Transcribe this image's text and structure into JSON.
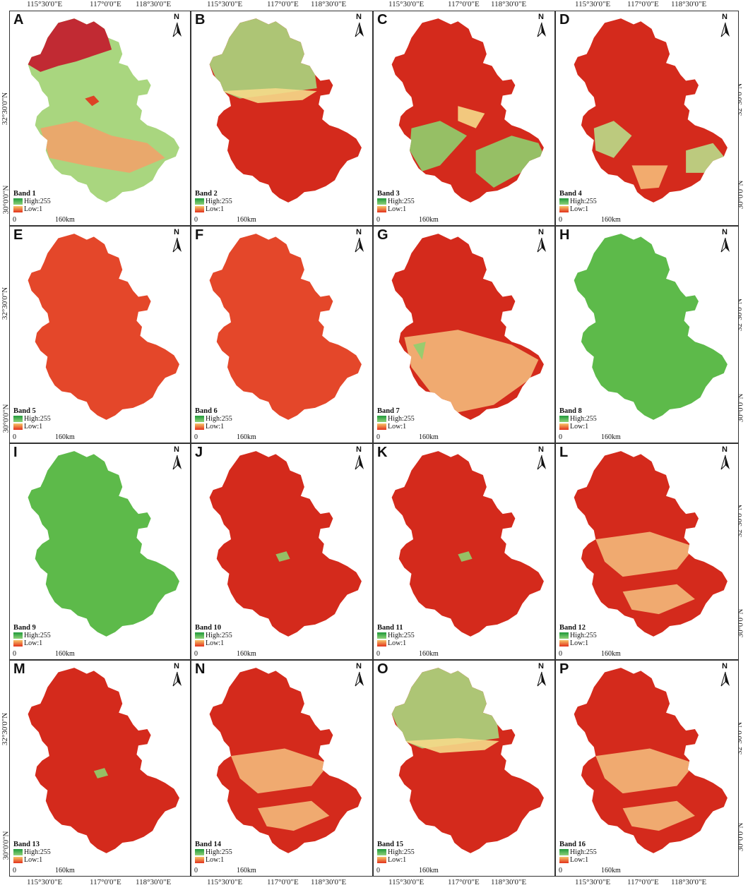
{
  "coords": {
    "top_lon": [
      "115°30'0\"E",
      "117°0'0\"E",
      "118°30'0\"E"
    ],
    "bottom_lon": [
      "115°30'0\"E",
      "117°0'0\"E",
      "118°30'0\"E"
    ],
    "lat": [
      "32°30'0\"N",
      "30°0'0\"N"
    ]
  },
  "legend": {
    "high_label": "High:255",
    "low_label": "Low:1"
  },
  "scale": {
    "zero": "0",
    "distance": "160km"
  },
  "north_label": "N",
  "colors": {
    "red": "#d42a1c",
    "dark_red": "#c3172b",
    "orange_red": "#e4472a",
    "green": "#5dba4a",
    "light_green": "#a9d67f",
    "yellow": "#f5d98a"
  },
  "panels": [
    {
      "letter": "A",
      "band": "Band 1",
      "palette": "mixed_a"
    },
    {
      "letter": "B",
      "band": "Band 2",
      "palette": "green_north_red_south"
    },
    {
      "letter": "C",
      "band": "Band 3",
      "palette": "red_north_green_south"
    },
    {
      "letter": "D",
      "band": "Band 4",
      "palette": "red_mostly"
    },
    {
      "letter": "E",
      "band": "Band 5",
      "palette": "orange_red_uniform"
    },
    {
      "letter": "F",
      "band": "Band 6",
      "palette": "orange_red_uniform"
    },
    {
      "letter": "G",
      "band": "Band 7",
      "palette": "red_north_mixed_south"
    },
    {
      "letter": "H",
      "band": "Band 8",
      "palette": "green_uniform"
    },
    {
      "letter": "I",
      "band": "Band 9",
      "palette": "green_uniform"
    },
    {
      "letter": "J",
      "band": "Band 10",
      "palette": "red_uniform"
    },
    {
      "letter": "K",
      "band": "Band 11",
      "palette": "red_uniform"
    },
    {
      "letter": "L",
      "band": "Band 12",
      "palette": "red_speckled"
    },
    {
      "letter": "M",
      "band": "Band 13",
      "palette": "red_uniform"
    },
    {
      "letter": "N",
      "band": "Band 14",
      "palette": "red_speckled"
    },
    {
      "letter": "O",
      "band": "Band 15",
      "palette": "green_north_red_south"
    },
    {
      "letter": "P",
      "band": "Band 16",
      "palette": "red_speckled"
    }
  ]
}
